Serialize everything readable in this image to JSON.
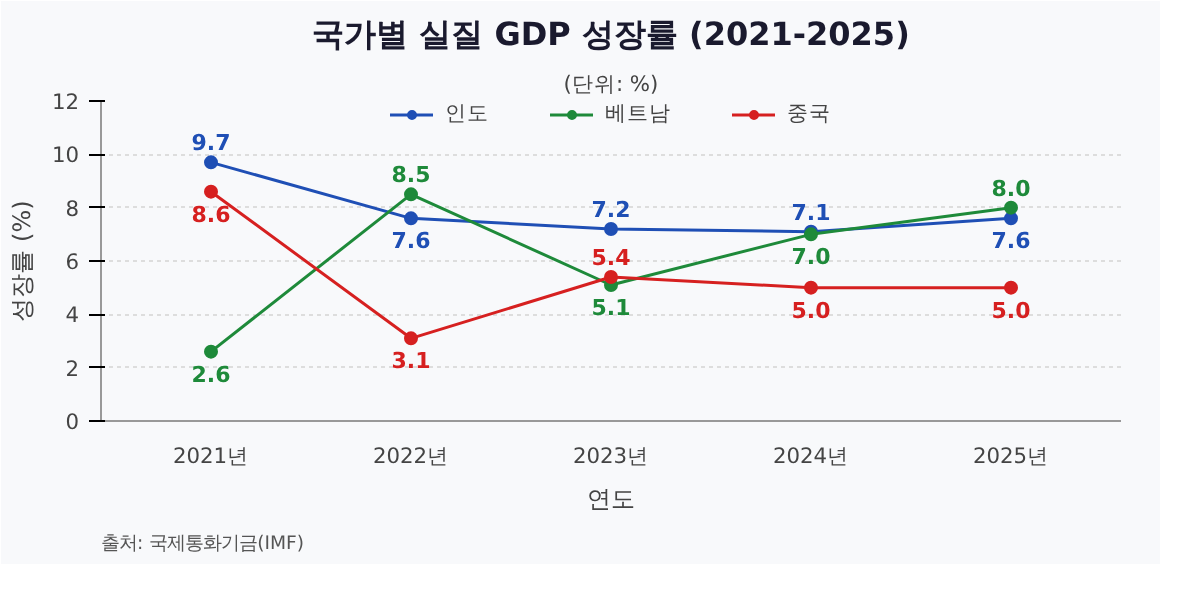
{
  "chart_data": {
    "type": "line",
    "title": "국가별 실질 GDP 성장률 (2021-2025)",
    "subtitle": "(단위: %)",
    "xlabel": "연도",
    "ylabel": "성장률 (%)",
    "annotations": [
      "출처: 국제통화기금(IMF)"
    ],
    "categories": [
      "2021년",
      "2022년",
      "2023년",
      "2024년",
      "2025년"
    ],
    "series": [
      {
        "name": "인도",
        "color": "#1f4fb5",
        "values": [
          9.7,
          7.6,
          7.2,
          7.1,
          7.6
        ],
        "value_labels": [
          "9.7",
          "7.6",
          "7.2",
          "7.1",
          "7.6"
        ]
      },
      {
        "name": "베트남",
        "color": "#1e8a3a",
        "values": [
          2.6,
          8.5,
          5.1,
          7.0,
          8.0
        ],
        "value_labels": [
          "2.6",
          "8.5",
          "5.1",
          "7.0",
          "8.0"
        ]
      },
      {
        "name": "중국",
        "color": "#d62020",
        "values": [
          8.6,
          3.1,
          5.4,
          5.0,
          5.0
        ],
        "value_labels": [
          "8.6",
          "3.1",
          "5.4",
          "5.0",
          "5.0"
        ]
      }
    ],
    "ylim": [
      0,
      12
    ],
    "yticks": [
      0,
      2,
      4,
      6,
      8,
      10,
      12
    ],
    "grid": "y",
    "legend": "top",
    "marker": "circle",
    "line_style": "solid"
  }
}
